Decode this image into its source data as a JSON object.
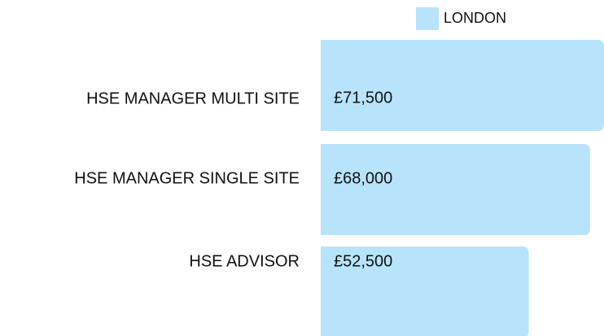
{
  "chart_data": {
    "type": "bar",
    "orientation": "horizontal",
    "categories": [
      "HSE MANAGER MULTI SITE",
      "HSE MANAGER SINGLE SITE",
      "HSE ADVISOR"
    ],
    "series": [
      {
        "name": "LONDON",
        "color": "#b8e4fb",
        "values": [
          71500,
          68000,
          52500
        ],
        "value_labels": [
          "£71,500",
          "£68,000",
          "£52,500"
        ]
      }
    ]
  }
}
